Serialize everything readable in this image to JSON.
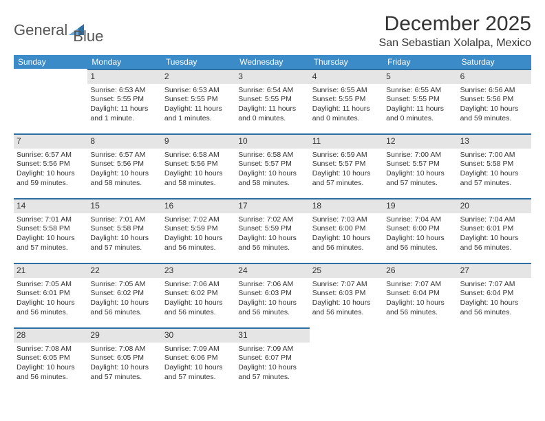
{
  "brand": {
    "name_part1": "General",
    "name_part2": "Blue",
    "text_color": "#555555",
    "accent_color": "#2d6fa3"
  },
  "title": "December 2025",
  "subtitle": "San Sebastian Xolalpa, Mexico",
  "colors": {
    "header_bg": "#3b8bc9",
    "daynum_bg": "#e5e5e5",
    "daynum_border": "#2d6fa3",
    "text": "#333333",
    "background": "#ffffff"
  },
  "weekdays": [
    "Sunday",
    "Monday",
    "Tuesday",
    "Wednesday",
    "Thursday",
    "Friday",
    "Saturday"
  ],
  "start_offset": 1,
  "days": [
    {
      "n": 1,
      "sunrise": "6:53 AM",
      "sunset": "5:55 PM",
      "daylight": "11 hours and 1 minute."
    },
    {
      "n": 2,
      "sunrise": "6:53 AM",
      "sunset": "5:55 PM",
      "daylight": "11 hours and 1 minutes."
    },
    {
      "n": 3,
      "sunrise": "6:54 AM",
      "sunset": "5:55 PM",
      "daylight": "11 hours and 0 minutes."
    },
    {
      "n": 4,
      "sunrise": "6:55 AM",
      "sunset": "5:55 PM",
      "daylight": "11 hours and 0 minutes."
    },
    {
      "n": 5,
      "sunrise": "6:55 AM",
      "sunset": "5:55 PM",
      "daylight": "11 hours and 0 minutes."
    },
    {
      "n": 6,
      "sunrise": "6:56 AM",
      "sunset": "5:56 PM",
      "daylight": "10 hours and 59 minutes."
    },
    {
      "n": 7,
      "sunrise": "6:57 AM",
      "sunset": "5:56 PM",
      "daylight": "10 hours and 59 minutes."
    },
    {
      "n": 8,
      "sunrise": "6:57 AM",
      "sunset": "5:56 PM",
      "daylight": "10 hours and 58 minutes."
    },
    {
      "n": 9,
      "sunrise": "6:58 AM",
      "sunset": "5:56 PM",
      "daylight": "10 hours and 58 minutes."
    },
    {
      "n": 10,
      "sunrise": "6:58 AM",
      "sunset": "5:57 PM",
      "daylight": "10 hours and 58 minutes."
    },
    {
      "n": 11,
      "sunrise": "6:59 AM",
      "sunset": "5:57 PM",
      "daylight": "10 hours and 57 minutes."
    },
    {
      "n": 12,
      "sunrise": "7:00 AM",
      "sunset": "5:57 PM",
      "daylight": "10 hours and 57 minutes."
    },
    {
      "n": 13,
      "sunrise": "7:00 AM",
      "sunset": "5:58 PM",
      "daylight": "10 hours and 57 minutes."
    },
    {
      "n": 14,
      "sunrise": "7:01 AM",
      "sunset": "5:58 PM",
      "daylight": "10 hours and 57 minutes."
    },
    {
      "n": 15,
      "sunrise": "7:01 AM",
      "sunset": "5:58 PM",
      "daylight": "10 hours and 57 minutes."
    },
    {
      "n": 16,
      "sunrise": "7:02 AM",
      "sunset": "5:59 PM",
      "daylight": "10 hours and 56 minutes."
    },
    {
      "n": 17,
      "sunrise": "7:02 AM",
      "sunset": "5:59 PM",
      "daylight": "10 hours and 56 minutes."
    },
    {
      "n": 18,
      "sunrise": "7:03 AM",
      "sunset": "6:00 PM",
      "daylight": "10 hours and 56 minutes."
    },
    {
      "n": 19,
      "sunrise": "7:04 AM",
      "sunset": "6:00 PM",
      "daylight": "10 hours and 56 minutes."
    },
    {
      "n": 20,
      "sunrise": "7:04 AM",
      "sunset": "6:01 PM",
      "daylight": "10 hours and 56 minutes."
    },
    {
      "n": 21,
      "sunrise": "7:05 AM",
      "sunset": "6:01 PM",
      "daylight": "10 hours and 56 minutes."
    },
    {
      "n": 22,
      "sunrise": "7:05 AM",
      "sunset": "6:02 PM",
      "daylight": "10 hours and 56 minutes."
    },
    {
      "n": 23,
      "sunrise": "7:06 AM",
      "sunset": "6:02 PM",
      "daylight": "10 hours and 56 minutes."
    },
    {
      "n": 24,
      "sunrise": "7:06 AM",
      "sunset": "6:03 PM",
      "daylight": "10 hours and 56 minutes."
    },
    {
      "n": 25,
      "sunrise": "7:07 AM",
      "sunset": "6:03 PM",
      "daylight": "10 hours and 56 minutes."
    },
    {
      "n": 26,
      "sunrise": "7:07 AM",
      "sunset": "6:04 PM",
      "daylight": "10 hours and 56 minutes."
    },
    {
      "n": 27,
      "sunrise": "7:07 AM",
      "sunset": "6:04 PM",
      "daylight": "10 hours and 56 minutes."
    },
    {
      "n": 28,
      "sunrise": "7:08 AM",
      "sunset": "6:05 PM",
      "daylight": "10 hours and 56 minutes."
    },
    {
      "n": 29,
      "sunrise": "7:08 AM",
      "sunset": "6:05 PM",
      "daylight": "10 hours and 57 minutes."
    },
    {
      "n": 30,
      "sunrise": "7:09 AM",
      "sunset": "6:06 PM",
      "daylight": "10 hours and 57 minutes."
    },
    {
      "n": 31,
      "sunrise": "7:09 AM",
      "sunset": "6:07 PM",
      "daylight": "10 hours and 57 minutes."
    }
  ],
  "labels": {
    "sunrise": "Sunrise:",
    "sunset": "Sunset:",
    "daylight": "Daylight:"
  }
}
